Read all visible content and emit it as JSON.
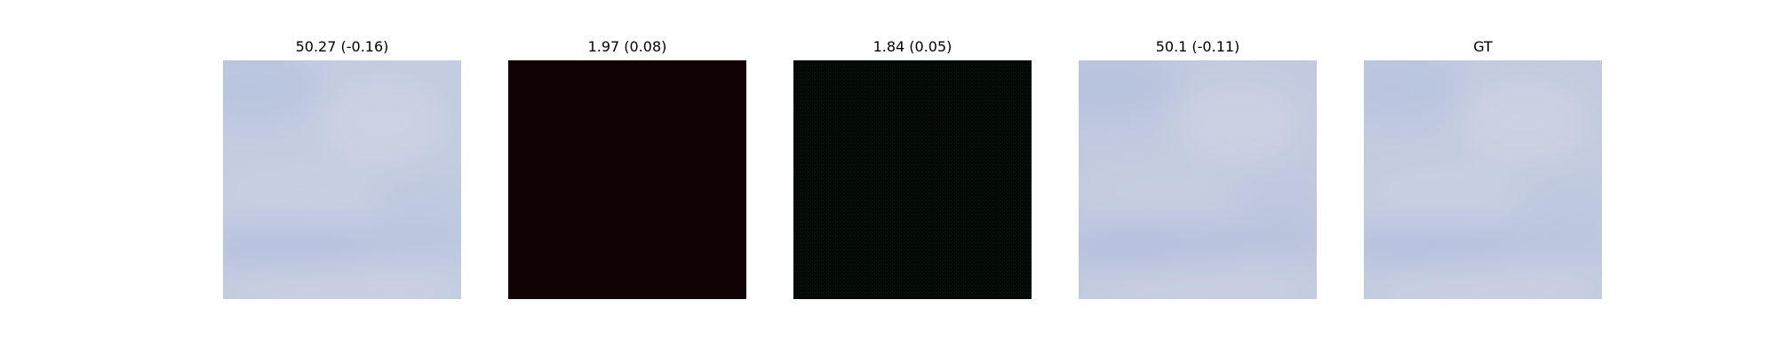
{
  "figure": {
    "panels": [
      {
        "title": "50.27 (-0.16)",
        "content": "cloudy-sky-image",
        "base_color": "#c2cbdf"
      },
      {
        "title": "1.97 (0.08)",
        "content": "near-black-reddish-image",
        "base_color": "#0e0204"
      },
      {
        "title": "1.84 (0.05)",
        "content": "near-black-greenish-image",
        "base_color": "#030b05"
      },
      {
        "title": "50.1 (-0.11)",
        "content": "cloudy-sky-image",
        "base_color": "#c0c9dd"
      },
      {
        "title": "GT",
        "content": "cloudy-sky-image",
        "base_color": "#c1cadf"
      }
    ]
  }
}
